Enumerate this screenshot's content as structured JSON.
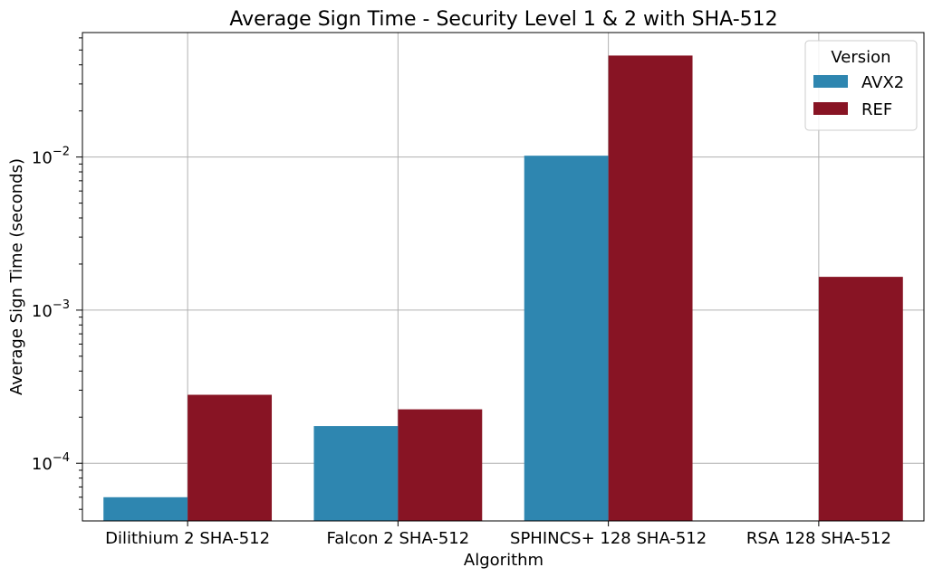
{
  "chart_data": {
    "type": "bar",
    "title": "Average Sign Time - Security Level 1 & 2 with SHA-512",
    "xlabel": "Algorithm",
    "ylabel": "Average Sign Time (seconds)",
    "yscale": "log",
    "ylim": [
      4.2e-05,
      0.065
    ],
    "y_ticks": [
      {
        "value": 0.0001,
        "base": "10",
        "exp": "−4"
      },
      {
        "value": 0.001,
        "base": "10",
        "exp": "−3"
      },
      {
        "value": 0.01,
        "base": "10",
        "exp": "−2"
      }
    ],
    "grid": true,
    "legend": {
      "title": "Version",
      "placement": "top-right"
    },
    "categories": [
      "Dilithium 2 SHA-512",
      "Falcon 2 SHA-512",
      "SPHINCS+ 128 SHA-512",
      "RSA 128 SHA-512"
    ],
    "series": [
      {
        "name": "AVX2",
        "color": "#2e86b0",
        "values": [
          6e-05,
          0.000175,
          0.0102,
          null
        ]
      },
      {
        "name": "REF",
        "color": "#881424",
        "values": [
          0.00028,
          0.000225,
          0.046,
          0.00165
        ]
      }
    ]
  }
}
